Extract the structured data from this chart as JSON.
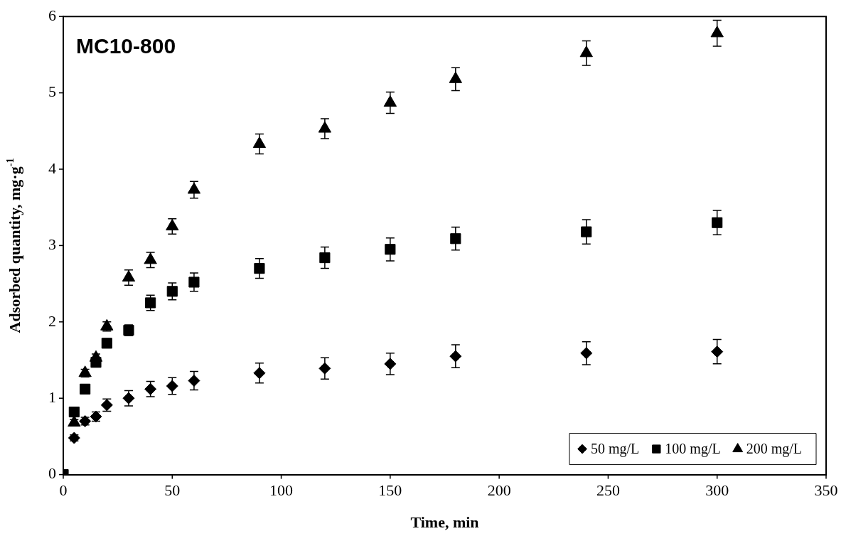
{
  "chart_data": {
    "type": "scatter",
    "title": "MC10-800",
    "xlabel": "Time, min",
    "ylabel": "Adsorbed quantity, mg·g$^{-1}$",
    "xlim": [
      0,
      350
    ],
    "xticks": [
      0,
      50,
      100,
      150,
      200,
      250,
      300,
      350
    ],
    "ylim": [
      0,
      6
    ],
    "yticks": [
      0,
      1,
      2,
      3,
      4,
      5,
      6
    ],
    "grid": false,
    "legend": "bottom right",
    "series": [
      {
        "name": "50 mg/L",
        "color": "#000000",
        "marker": "diamond",
        "x": [
          5,
          10,
          15,
          20,
          30,
          40,
          50,
          60,
          90,
          120,
          150,
          180,
          240,
          300
        ],
        "values": [
          0.48,
          0.7,
          0.76,
          0.91,
          1.0,
          1.12,
          1.16,
          1.23,
          1.33,
          1.39,
          1.45,
          1.55,
          1.59,
          1.61
        ],
        "errors": [
          0.04,
          0.05,
          0.06,
          0.08,
          0.1,
          0.1,
          0.11,
          0.12,
          0.13,
          0.14,
          0.14,
          0.15,
          0.15,
          0.16
        ]
      },
      {
        "name": "100 mg/L",
        "color": "#000000",
        "marker": "square",
        "x": [
          0,
          5,
          10,
          15,
          20,
          30,
          40,
          50,
          60,
          90,
          120,
          150,
          180,
          240,
          300
        ],
        "values": [
          0,
          0.82,
          1.12,
          1.47,
          1.72,
          1.89,
          2.25,
          2.4,
          2.52,
          2.7,
          2.84,
          2.95,
          3.09,
          3.18,
          3.3
        ],
        "errors": [
          null,
          null,
          null,
          0.06,
          0.06,
          0.07,
          0.1,
          0.11,
          0.12,
          0.13,
          0.14,
          0.15,
          0.15,
          0.16,
          0.16
        ]
      },
      {
        "name": "200 mg/L",
        "color": "#000000",
        "marker": "triangle",
        "x": [
          5,
          10,
          15,
          20,
          30,
          40,
          50,
          60,
          90,
          120,
          150,
          180,
          240,
          300
        ],
        "values": [
          0.68,
          1.33,
          1.53,
          1.94,
          2.58,
          2.81,
          3.25,
          3.73,
          4.33,
          4.53,
          4.87,
          5.18,
          5.52,
          5.78
        ],
        "errors": [
          0.04,
          0.05,
          0.05,
          0.06,
          0.1,
          0.1,
          0.1,
          0.11,
          0.13,
          0.13,
          0.14,
          0.15,
          0.16,
          0.17
        ]
      }
    ]
  }
}
